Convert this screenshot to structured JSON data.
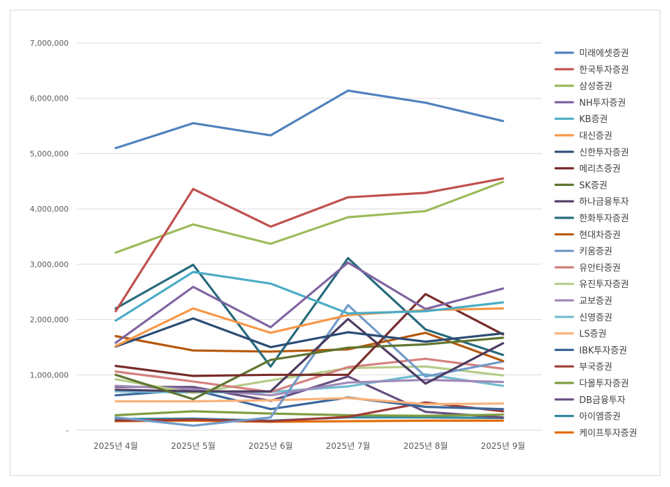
{
  "chart_data": {
    "type": "line",
    "categories": [
      "2025년 4월",
      "2025년 5월",
      "2025년 6월",
      "2025년 7월",
      "2025년 8월",
      "2025년 9월"
    ],
    "ylim": [
      0,
      7000000
    ],
    "yticks": [
      {
        "value": 0,
        "label": "-"
      },
      {
        "value": 1000000,
        "label": "1,000,000"
      },
      {
        "value": 2000000,
        "label": "2,000,000"
      },
      {
        "value": 3000000,
        "label": "3,000,000"
      },
      {
        "value": 4000000,
        "label": "4,000,000"
      },
      {
        "value": 5000000,
        "label": "5,000,000"
      },
      {
        "value": 6000000,
        "label": "6,000,000"
      },
      {
        "value": 7000000,
        "label": "7,000,000"
      }
    ],
    "grid": true,
    "legend_position": "right",
    "series": [
      {
        "name": "미래에셋증권",
        "color": "#4f81bd",
        "values": [
          5100000,
          5550000,
          5330000,
          6140000,
          5920000,
          5590000
        ]
      },
      {
        "name": "한국투자증권",
        "color": "#c0504d",
        "values": [
          2150000,
          4360000,
          3680000,
          4210000,
          4290000,
          4550000
        ]
      },
      {
        "name": "삼성증권",
        "color": "#9bbb59",
        "values": [
          3210000,
          3720000,
          3370000,
          3850000,
          3960000,
          4490000
        ]
      },
      {
        "name": "NH투자증권",
        "color": "#8064a2",
        "values": [
          1580000,
          2590000,
          1860000,
          3030000,
          2190000,
          2560000
        ]
      },
      {
        "name": "KB증권",
        "color": "#4bacc6",
        "values": [
          1980000,
          2860000,
          2650000,
          2110000,
          2150000,
          2310000
        ]
      },
      {
        "name": "대신증권",
        "color": "#f79646",
        "values": [
          1520000,
          2200000,
          1760000,
          2080000,
          2170000,
          2200000
        ]
      },
      {
        "name": "신한투자증권",
        "color": "#2c4d75",
        "values": [
          1510000,
          2020000,
          1500000,
          1770000,
          1600000,
          1750000
        ]
      },
      {
        "name": "메리츠증권",
        "color": "#772c2a",
        "values": [
          1160000,
          980000,
          1000000,
          1000000,
          2460000,
          1730000
        ]
      },
      {
        "name": "SK증권",
        "color": "#5f7530",
        "values": [
          1000000,
          560000,
          1270000,
          1490000,
          1550000,
          1670000
        ]
      },
      {
        "name": "하나금융투자",
        "color": "#4d3b62",
        "values": [
          730000,
          700000,
          700000,
          2010000,
          840000,
          1570000
        ]
      },
      {
        "name": "한화투자증권",
        "color": "#276a7c",
        "values": [
          2200000,
          2990000,
          1150000,
          3110000,
          1820000,
          1360000
        ]
      },
      {
        "name": "현대차증권",
        "color": "#b65708",
        "values": [
          1700000,
          1440000,
          1420000,
          1460000,
          1760000,
          1250000
        ]
      },
      {
        "name": "키움증권",
        "color": "#729aca",
        "values": [
          230000,
          80000,
          230000,
          2260000,
          970000,
          1240000
        ]
      },
      {
        "name": "유안타증권",
        "color": "#d4817f",
        "values": [
          1060000,
          880000,
          690000,
          1140000,
          1290000,
          1110000
        ]
      },
      {
        "name": "유진투자증권",
        "color": "#b5cc88",
        "values": [
          920000,
          670000,
          900000,
          1120000,
          1150000,
          990000
        ]
      },
      {
        "name": "교보증권",
        "color": "#a08ab8",
        "values": [
          800000,
          740000,
          630000,
          860000,
          910000,
          870000
        ]
      },
      {
        "name": "신영증권",
        "color": "#70bcd1",
        "values": [
          700000,
          680000,
          690000,
          790000,
          1010000,
          800000
        ]
      },
      {
        "name": "LS증권",
        "color": "#f9b27b",
        "values": [
          520000,
          520000,
          540000,
          580000,
          470000,
          480000
        ]
      },
      {
        "name": "IBK투자증권",
        "color": "#3a679c",
        "values": [
          630000,
          730000,
          380000,
          590000,
          420000,
          380000
        ]
      },
      {
        "name": "부국증권",
        "color": "#9e3b38",
        "values": [
          170000,
          190000,
          160000,
          240000,
          500000,
          340000
        ]
      },
      {
        "name": "다올투자증권",
        "color": "#7f9d41",
        "values": [
          270000,
          340000,
          300000,
          270000,
          260000,
          280000
        ]
      },
      {
        "name": "DB금융투자",
        "color": "#664f82",
        "values": [
          780000,
          780000,
          530000,
          970000,
          330000,
          230000
        ]
      },
      {
        "name": "아이엠증권",
        "color": "#34899f",
        "values": [
          200000,
          210000,
          170000,
          230000,
          230000,
          220000
        ]
      },
      {
        "name": "케이프투자증권",
        "color": "#e46c0a",
        "values": [
          160000,
          170000,
          150000,
          160000,
          170000,
          170000
        ]
      }
    ]
  }
}
